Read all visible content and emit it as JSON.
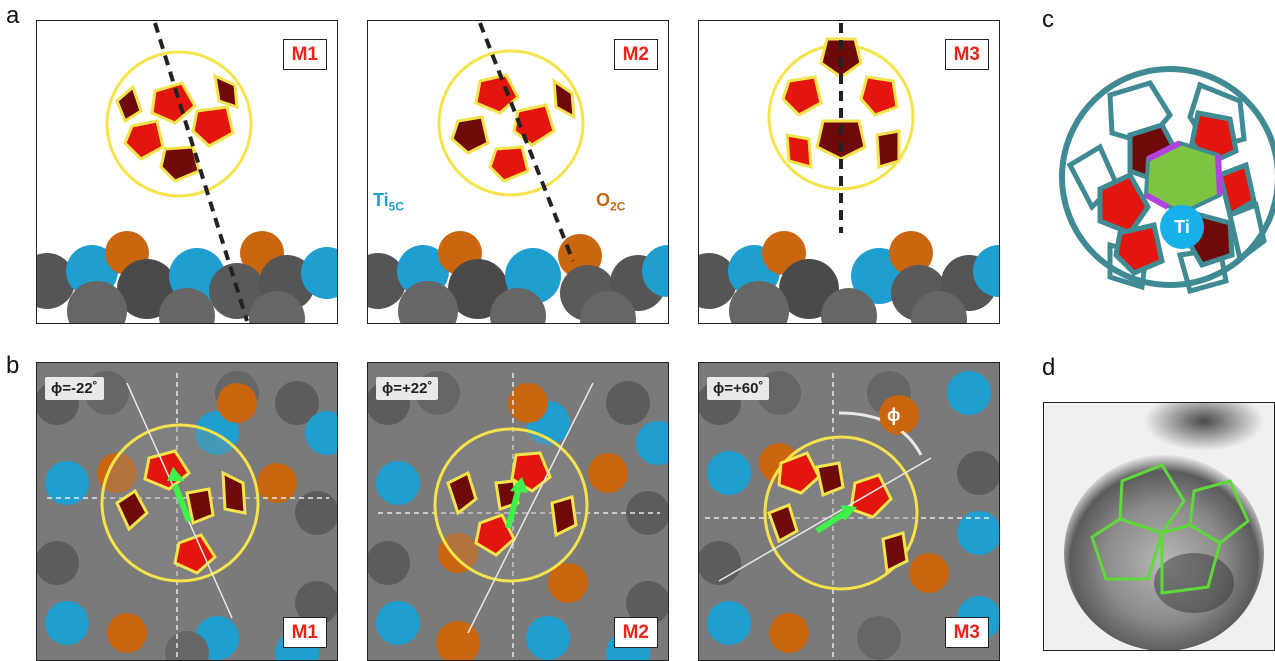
{
  "panels": {
    "a": {
      "letter": "a"
    },
    "b": {
      "letter": "b"
    },
    "c": {
      "letter": "c"
    },
    "d": {
      "letter": "d"
    }
  },
  "models": [
    "M1",
    "M2",
    "M3"
  ],
  "angles": [
    "ϕ=-22˚",
    "ϕ=+22˚",
    "ϕ=+60˚"
  ],
  "atoms": {
    "ti_main": "Ti",
    "ti_sub": "5C",
    "o_main": "O",
    "o_sub": "2C",
    "ti_c": "Ti",
    "phi_symbol": "ϕ"
  },
  "colors": {
    "ti": "#1e9fd0",
    "o": "#c9660f",
    "ti_surface": "#5a5a5a",
    "cage": "#f4e34a",
    "pentagon": "#e2160f",
    "pentagon_dark": "#6e0a0a",
    "green": "#7cc442",
    "teal": "#3f8a93",
    "badge_text": "#e8241b"
  }
}
